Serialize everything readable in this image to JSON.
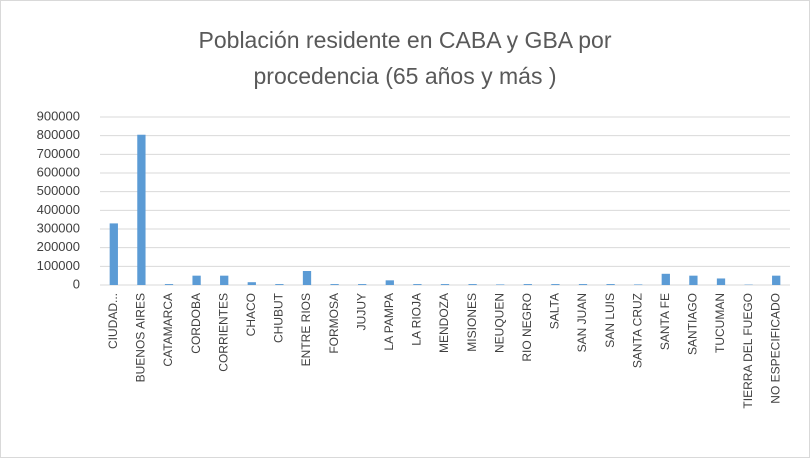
{
  "chart_data": {
    "type": "bar",
    "title": "Población residente en CABA y GBA por procedencia (65 años y más )",
    "categories": [
      "CIUDAD...",
      "BUENOS AIRES",
      "CATAMARCA",
      "CORDOBA",
      "CORRIENTES",
      "CHACO",
      "CHUBUT",
      "ENTRE RIOS",
      "FORMOSA",
      "JUJUY",
      "LA PAMPA",
      "LA RIOJA",
      "MENDOZA",
      "MISIONES",
      "NEUQUEN",
      "RIO NEGRO",
      "SALTA",
      "SAN JUAN",
      "SAN LUIS",
      "SANTA CRUZ",
      "SANTA FE",
      "SANTIAGO",
      "TUCUMAN",
      "TIERRA DEL FUEGO",
      "NO ESPECIFICADO"
    ],
    "values": [
      330000,
      805000,
      5000,
      50000,
      50000,
      15000,
      5000,
      75000,
      5000,
      5000,
      25000,
      5000,
      5000,
      5000,
      3000,
      5000,
      5000,
      5000,
      5000,
      3000,
      60000,
      50000,
      35000,
      2000,
      50000
    ],
    "color": "#5b9bd5",
    "ylim": [
      0,
      900000
    ],
    "yticks": [
      0,
      100000,
      200000,
      300000,
      400000,
      500000,
      600000,
      700000,
      800000,
      900000
    ],
    "grid": true
  }
}
